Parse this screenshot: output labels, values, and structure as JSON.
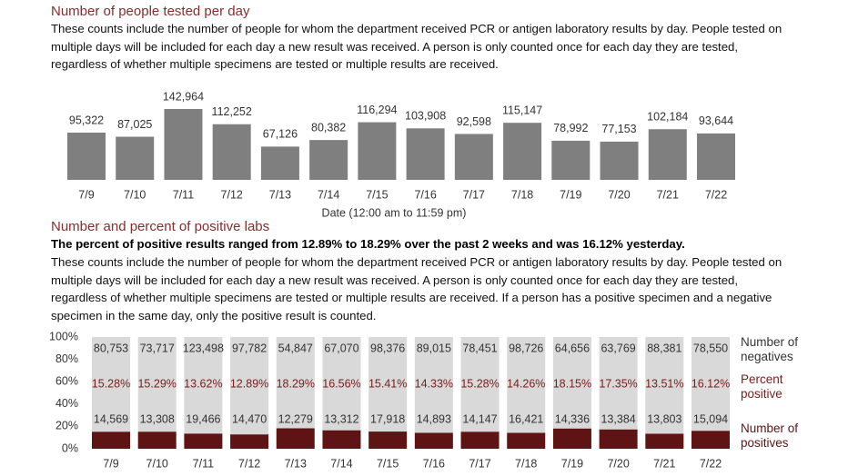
{
  "chart_data": [
    {
      "type": "bar",
      "title": "Number of people tested per day",
      "subtitle": "These counts include the number of people for whom the department received PCR or antigen laboratory results by day. People tested on multiple days will be included for each day a new result was received. A person is only counted once for each day they are tested, regardless of whether multiple specimens are tested or multiple results are received.",
      "x_label": "Date (12:00 am to 11:59 pm)",
      "categories": [
        "7/9",
        "7/10",
        "7/11",
        "7/12",
        "7/13",
        "7/14",
        "7/15",
        "7/16",
        "7/17",
        "7/18",
        "7/19",
        "7/20",
        "7/21",
        "7/22"
      ],
      "values": [
        95322,
        87025,
        142964,
        112252,
        67126,
        80382,
        116294,
        103908,
        92598,
        115147,
        78992,
        77153,
        102184,
        93644
      ],
      "value_labels": [
        "95,322",
        "87,025",
        "142,964",
        "112,252",
        "67,126",
        "80,382",
        "116,294",
        "103,908",
        "92,598",
        "115,147",
        "78,992",
        "77,153",
        "102,184",
        "93,644"
      ],
      "color": "#7f7f7f"
    },
    {
      "type": "stacked-percent-bar",
      "title": "Number and percent of positive labs",
      "highlight": "The percent of positive results ranged from 12.89% to 18.29% over the past 2 weeks and was 16.12% yesterday.",
      "subtitle": "These counts include the number of people for whom the department received PCR or antigen laboratory results by day. People tested on multiple days will be included for each day a new result was received. A person is only counted once for each day they are tested, regardless of whether multiple specimens are tested or multiple results are received. If a person has a positive specimen and a negative specimen in the same day, only the positive result is counted.",
      "categories": [
        "7/9",
        "7/10",
        "7/11",
        "7/12",
        "7/13",
        "7/14",
        "7/15",
        "7/16",
        "7/17",
        "7/18",
        "7/19",
        "7/20",
        "7/21",
        "7/22"
      ],
      "ylim": [
        0,
        100
      ],
      "yticks": [
        {
          "value": 0,
          "label": "0%"
        },
        {
          "value": 20,
          "label": "20%"
        },
        {
          "value": 40,
          "label": "40%"
        },
        {
          "value": 60,
          "label": "60%"
        },
        {
          "value": 80,
          "label": "80%"
        },
        {
          "value": 100,
          "label": "100%"
        }
      ],
      "series": [
        {
          "name": "Number of negatives",
          "color": "#d9d9d9",
          "values": [
            80753,
            73717,
            123498,
            97782,
            54847,
            67070,
            98376,
            89015,
            78451,
            98726,
            64656,
            63769,
            88381,
            78550
          ],
          "value_labels": [
            "80,753",
            "73,717",
            "123,498",
            "97,782",
            "54,847",
            "67,070",
            "98,376",
            "89,015",
            "78,451",
            "98,726",
            "64,656",
            "63,769",
            "88,381",
            "78,550"
          ]
        },
        {
          "name": "Percent positive",
          "color": "#7b1c1c",
          "values": [
            15.28,
            15.29,
            13.62,
            12.89,
            18.29,
            16.56,
            15.41,
            14.33,
            15.28,
            14.26,
            18.15,
            17.35,
            13.51,
            16.12
          ],
          "value_labels": [
            "15.28%",
            "15.29%",
            "13.62%",
            "12.89%",
            "18.29%",
            "16.56%",
            "15.41%",
            "14.33%",
            "15.28%",
            "14.26%",
            "18.15%",
            "17.35%",
            "13.51%",
            "16.12%"
          ]
        },
        {
          "name": "Number of positives",
          "color": "#5e1414",
          "values": [
            14569,
            13308,
            19466,
            14470,
            12279,
            13312,
            17918,
            14893,
            14147,
            16421,
            14336,
            13384,
            13803,
            15094
          ],
          "value_labels": [
            "14,569",
            "13,308",
            "19,466",
            "14,470",
            "12,279",
            "13,312",
            "17,918",
            "14,893",
            "14,147",
            "16,421",
            "14,336",
            "13,384",
            "13,803",
            "15,094"
          ]
        }
      ]
    }
  ]
}
